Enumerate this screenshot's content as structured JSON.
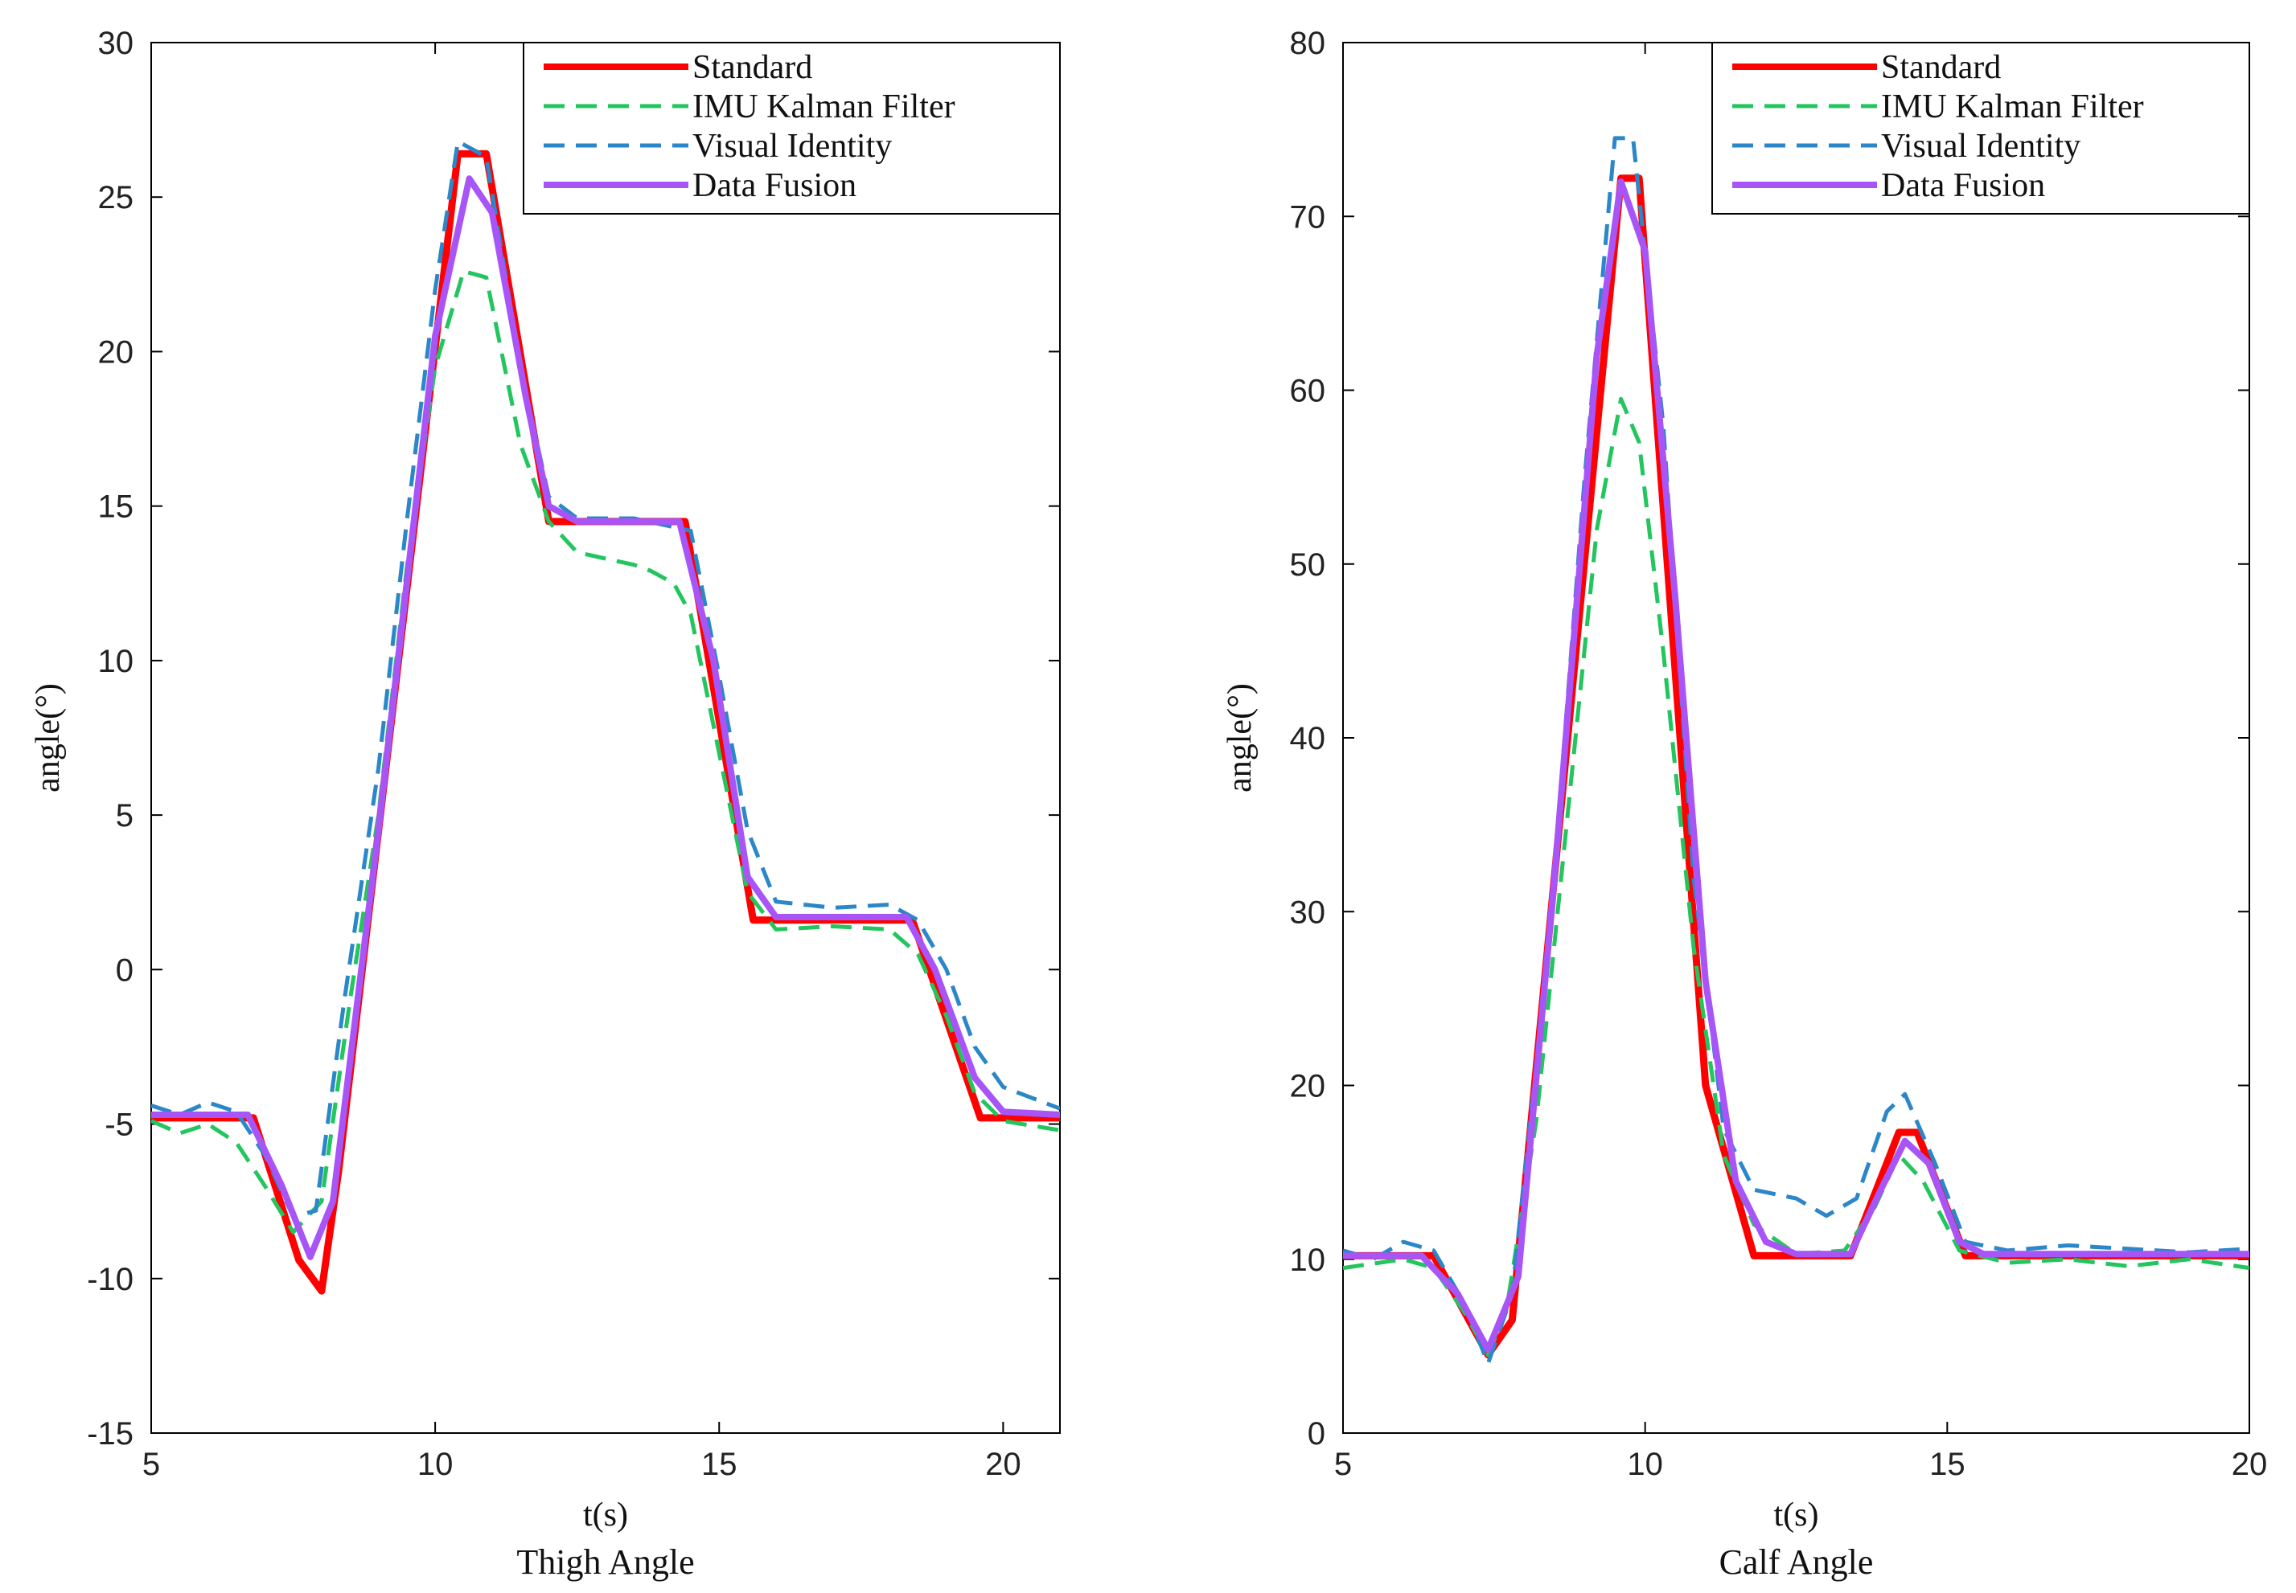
{
  "chart_data": [
    {
      "type": "line",
      "title": "Thigh Angle",
      "xlabel": "t(s)",
      "ylabel": "angle(°)",
      "xlim": [
        5,
        21
      ],
      "ylim": [
        -15,
        30
      ],
      "xticks": [
        5,
        10,
        15,
        20
      ],
      "yticks": [
        -15,
        -10,
        -5,
        0,
        5,
        10,
        15,
        20,
        25,
        30
      ],
      "grid": false,
      "legend_position": "top-right",
      "series": [
        {
          "name": "Standard",
          "color": "#ff0000",
          "style": "solid",
          "points": [
            [
              5,
              -4.8
            ],
            [
              6.8,
              -4.8
            ],
            [
              7.6,
              -9.4
            ],
            [
              8.0,
              -10.4
            ],
            [
              8.3,
              -6.5
            ],
            [
              10.4,
              26.4
            ],
            [
              10.9,
              26.4
            ],
            [
              12.0,
              14.5
            ],
            [
              14.4,
              14.5
            ],
            [
              15.6,
              1.6
            ],
            [
              18.4,
              1.6
            ],
            [
              19.6,
              -4.8
            ],
            [
              21,
              -4.8
            ]
          ]
        },
        {
          "name": "IMU Kalman Filter",
          "color": "#22c55e",
          "style": "dashed",
          "points": [
            [
              5,
              -4.9
            ],
            [
              5.5,
              -5.3
            ],
            [
              6.0,
              -5.0
            ],
            [
              6.5,
              -5.6
            ],
            [
              7.0,
              -7.0
            ],
            [
              7.5,
              -8.5
            ],
            [
              8.0,
              -7.5
            ],
            [
              8.5,
              -1.0
            ],
            [
              9.0,
              5.0
            ],
            [
              9.5,
              13.0
            ],
            [
              10.0,
              19.5
            ],
            [
              10.5,
              22.6
            ],
            [
              10.9,
              22.4
            ],
            [
              11.5,
              17.0
            ],
            [
              12.0,
              14.5
            ],
            [
              12.5,
              13.5
            ],
            [
              13.0,
              13.3
            ],
            [
              13.5,
              13.1
            ],
            [
              13.8,
              12.9
            ],
            [
              14.2,
              12.5
            ],
            [
              14.5,
              11.5
            ],
            [
              15.0,
              7.0
            ],
            [
              15.5,
              2.5
            ],
            [
              16.0,
              1.3
            ],
            [
              17.0,
              1.4
            ],
            [
              18.0,
              1.3
            ],
            [
              18.5,
              0.5
            ],
            [
              19.0,
              -1.5
            ],
            [
              19.5,
              -4.0
            ],
            [
              20.0,
              -4.9
            ],
            [
              21,
              -5.2
            ]
          ]
        },
        {
          "name": "Visual Identity",
          "color": "#2b87c8",
          "style": "dashed",
          "points": [
            [
              5,
              -4.4
            ],
            [
              5.5,
              -4.7
            ],
            [
              6.0,
              -4.3
            ],
            [
              6.5,
              -4.6
            ],
            [
              7.0,
              -6.0
            ],
            [
              7.5,
              -8.0
            ],
            [
              7.9,
              -7.8
            ],
            [
              8.4,
              -1.0
            ],
            [
              9.0,
              6.5
            ],
            [
              9.5,
              14.5
            ],
            [
              10.0,
              22.0
            ],
            [
              10.4,
              26.8
            ],
            [
              10.9,
              26.3
            ],
            [
              11.5,
              19.5
            ],
            [
              12.0,
              15.3
            ],
            [
              12.5,
              14.6
            ],
            [
              13.5,
              14.6
            ],
            [
              14.5,
              14.2
            ],
            [
              15.0,
              9.5
            ],
            [
              15.5,
              4.5
            ],
            [
              16.0,
              2.2
            ],
            [
              17.0,
              2.0
            ],
            [
              18.0,
              2.1
            ],
            [
              18.5,
              1.6
            ],
            [
              19.0,
              0.0
            ],
            [
              19.5,
              -2.5
            ],
            [
              20.0,
              -3.8
            ],
            [
              21,
              -4.5
            ]
          ]
        },
        {
          "name": "Data Fusion",
          "color": "#a855f7",
          "style": "solid",
          "points": [
            [
              5,
              -4.7
            ],
            [
              6.7,
              -4.7
            ],
            [
              7.3,
              -7.0
            ],
            [
              7.8,
              -9.3
            ],
            [
              8.2,
              -7.5
            ],
            [
              9.0,
              4.5
            ],
            [
              10.0,
              20.5
            ],
            [
              10.6,
              25.6
            ],
            [
              11.0,
              24.5
            ],
            [
              11.6,
              18.5
            ],
            [
              12.0,
              15.0
            ],
            [
              12.5,
              14.5
            ],
            [
              14.3,
              14.5
            ],
            [
              14.9,
              10.0
            ],
            [
              15.5,
              3.0
            ],
            [
              16.0,
              1.7
            ],
            [
              18.3,
              1.7
            ],
            [
              18.8,
              0.0
            ],
            [
              19.5,
              -3.5
            ],
            [
              20.0,
              -4.6
            ],
            [
              21,
              -4.7
            ]
          ]
        }
      ]
    },
    {
      "type": "line",
      "title": "Calf Angle",
      "xlabel": "t(s)",
      "ylabel": "angle(°)",
      "xlim": [
        5,
        20
      ],
      "ylim": [
        0,
        80
      ],
      "xticks": [
        5,
        10,
        15,
        20
      ],
      "yticks": [
        0,
        10,
        20,
        30,
        40,
        50,
        60,
        70,
        80
      ],
      "grid": false,
      "legend_position": "top-right",
      "series": [
        {
          "name": "Standard",
          "color": "#ff0000",
          "style": "solid",
          "points": [
            [
              5,
              10.2
            ],
            [
              6.5,
              10.2
            ],
            [
              7.4,
              4.5
            ],
            [
              7.8,
              6.5
            ],
            [
              9.6,
              72.2
            ],
            [
              9.9,
              72.2
            ],
            [
              11.0,
              20.0
            ],
            [
              11.8,
              10.2
            ],
            [
              13.4,
              10.2
            ],
            [
              14.2,
              17.3
            ],
            [
              14.5,
              17.3
            ],
            [
              15.3,
              10.2
            ],
            [
              20,
              10.2
            ]
          ]
        },
        {
          "name": "IMU Kalman Filter",
          "color": "#22c55e",
          "style": "dashed",
          "points": [
            [
              5,
              9.5
            ],
            [
              6.0,
              10.0
            ],
            [
              6.5,
              9.5
            ],
            [
              7.0,
              7.0
            ],
            [
              7.4,
              4.5
            ],
            [
              7.7,
              7.0
            ],
            [
              8.2,
              18.0
            ],
            [
              8.7,
              35.0
            ],
            [
              9.2,
              52.0
            ],
            [
              9.6,
              59.5
            ],
            [
              9.9,
              57.0
            ],
            [
              10.3,
              45.0
            ],
            [
              10.8,
              28.0
            ],
            [
              11.3,
              16.0
            ],
            [
              11.8,
              12.0
            ],
            [
              12.5,
              10.3
            ],
            [
              13.3,
              10.5
            ],
            [
              13.8,
              13.0
            ],
            [
              14.2,
              16.0
            ],
            [
              14.6,
              14.5
            ],
            [
              15.2,
              10.5
            ],
            [
              16.0,
              9.8
            ],
            [
              17.0,
              10.0
            ],
            [
              18.0,
              9.6
            ],
            [
              19.0,
              10.0
            ],
            [
              20,
              9.5
            ]
          ]
        },
        {
          "name": "Visual Identity",
          "color": "#2b87c8",
          "style": "dashed",
          "points": [
            [
              5,
              10.5
            ],
            [
              5.5,
              10.0
            ],
            [
              6.0,
              11.0
            ],
            [
              6.5,
              10.5
            ],
            [
              7.0,
              7.5
            ],
            [
              7.4,
              4.0
            ],
            [
              7.8,
              8.0
            ],
            [
              8.4,
              28.0
            ],
            [
              9.0,
              55.0
            ],
            [
              9.5,
              74.5
            ],
            [
              9.8,
              74.5
            ],
            [
              10.3,
              58.0
            ],
            [
              10.8,
              32.0
            ],
            [
              11.3,
              17.5
            ],
            [
              11.8,
              14.0
            ],
            [
              12.5,
              13.5
            ],
            [
              13.0,
              12.5
            ],
            [
              13.5,
              13.5
            ],
            [
              14.0,
              18.5
            ],
            [
              14.3,
              19.5
            ],
            [
              14.8,
              15.5
            ],
            [
              15.3,
              11.0
            ],
            [
              16.0,
              10.5
            ],
            [
              17.0,
              10.8
            ],
            [
              18.0,
              10.6
            ],
            [
              19.0,
              10.4
            ],
            [
              20,
              10.6
            ]
          ]
        },
        {
          "name": "Data Fusion",
          "color": "#a855f7",
          "style": "solid",
          "points": [
            [
              5,
              10.2
            ],
            [
              6.3,
              10.2
            ],
            [
              6.9,
              8.0
            ],
            [
              7.4,
              4.8
            ],
            [
              7.9,
              9.0
            ],
            [
              8.5,
              32.0
            ],
            [
              9.2,
              62.0
            ],
            [
              9.6,
              72.0
            ],
            [
              10.0,
              68.0
            ],
            [
              10.5,
              48.0
            ],
            [
              11.0,
              26.0
            ],
            [
              11.5,
              14.5
            ],
            [
              12.0,
              11.0
            ],
            [
              12.5,
              10.3
            ],
            [
              13.4,
              10.3
            ],
            [
              13.9,
              14.0
            ],
            [
              14.3,
              16.8
            ],
            [
              14.7,
              15.5
            ],
            [
              15.2,
              11.0
            ],
            [
              15.6,
              10.3
            ],
            [
              20,
              10.3
            ]
          ]
        }
      ]
    }
  ]
}
